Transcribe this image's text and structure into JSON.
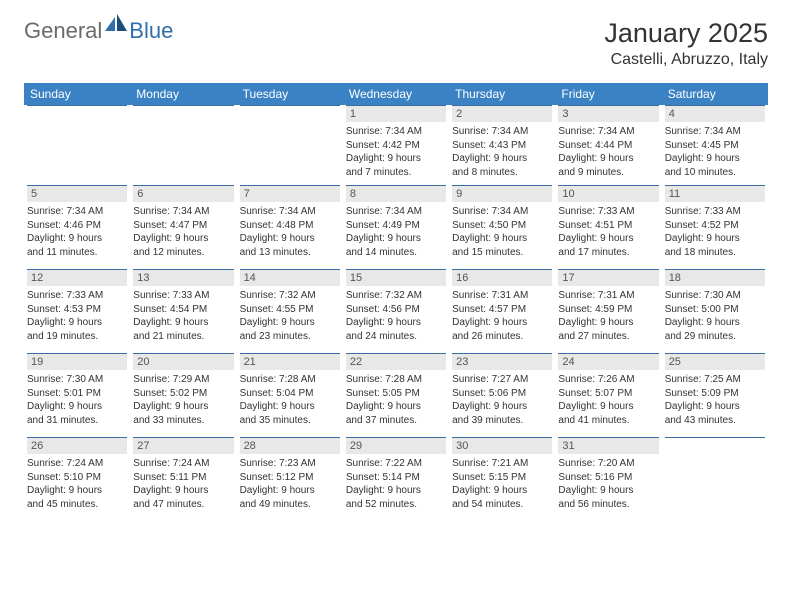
{
  "logo": {
    "text_general": "General",
    "text_blue": "Blue"
  },
  "header": {
    "month_title": "January 2025",
    "location": "Castelli, Abruzzo, Italy"
  },
  "colors": {
    "header_bg": "#3b82c4",
    "header_text": "#ffffff",
    "dayhead_bg": "#e8e8e8",
    "dayhead_border": "#3b6ea0",
    "body_text": "#333333",
    "logo_gray": "#6b6b6b",
    "logo_blue": "#2f6fab"
  },
  "day_names": [
    "Sunday",
    "Monday",
    "Tuesday",
    "Wednesday",
    "Thursday",
    "Friday",
    "Saturday"
  ],
  "weeks": [
    [
      null,
      null,
      null,
      {
        "d": "1",
        "sr": "7:34 AM",
        "ss": "4:42 PM",
        "dl1": "9 hours",
        "dl2": "and 7 minutes."
      },
      {
        "d": "2",
        "sr": "7:34 AM",
        "ss": "4:43 PM",
        "dl1": "9 hours",
        "dl2": "and 8 minutes."
      },
      {
        "d": "3",
        "sr": "7:34 AM",
        "ss": "4:44 PM",
        "dl1": "9 hours",
        "dl2": "and 9 minutes."
      },
      {
        "d": "4",
        "sr": "7:34 AM",
        "ss": "4:45 PM",
        "dl1": "9 hours",
        "dl2": "and 10 minutes."
      }
    ],
    [
      {
        "d": "5",
        "sr": "7:34 AM",
        "ss": "4:46 PM",
        "dl1": "9 hours",
        "dl2": "and 11 minutes."
      },
      {
        "d": "6",
        "sr": "7:34 AM",
        "ss": "4:47 PM",
        "dl1": "9 hours",
        "dl2": "and 12 minutes."
      },
      {
        "d": "7",
        "sr": "7:34 AM",
        "ss": "4:48 PM",
        "dl1": "9 hours",
        "dl2": "and 13 minutes."
      },
      {
        "d": "8",
        "sr": "7:34 AM",
        "ss": "4:49 PM",
        "dl1": "9 hours",
        "dl2": "and 14 minutes."
      },
      {
        "d": "9",
        "sr": "7:34 AM",
        "ss": "4:50 PM",
        "dl1": "9 hours",
        "dl2": "and 15 minutes."
      },
      {
        "d": "10",
        "sr": "7:33 AM",
        "ss": "4:51 PM",
        "dl1": "9 hours",
        "dl2": "and 17 minutes."
      },
      {
        "d": "11",
        "sr": "7:33 AM",
        "ss": "4:52 PM",
        "dl1": "9 hours",
        "dl2": "and 18 minutes."
      }
    ],
    [
      {
        "d": "12",
        "sr": "7:33 AM",
        "ss": "4:53 PM",
        "dl1": "9 hours",
        "dl2": "and 19 minutes."
      },
      {
        "d": "13",
        "sr": "7:33 AM",
        "ss": "4:54 PM",
        "dl1": "9 hours",
        "dl2": "and 21 minutes."
      },
      {
        "d": "14",
        "sr": "7:32 AM",
        "ss": "4:55 PM",
        "dl1": "9 hours",
        "dl2": "and 23 minutes."
      },
      {
        "d": "15",
        "sr": "7:32 AM",
        "ss": "4:56 PM",
        "dl1": "9 hours",
        "dl2": "and 24 minutes."
      },
      {
        "d": "16",
        "sr": "7:31 AM",
        "ss": "4:57 PM",
        "dl1": "9 hours",
        "dl2": "and 26 minutes."
      },
      {
        "d": "17",
        "sr": "7:31 AM",
        "ss": "4:59 PM",
        "dl1": "9 hours",
        "dl2": "and 27 minutes."
      },
      {
        "d": "18",
        "sr": "7:30 AM",
        "ss": "5:00 PM",
        "dl1": "9 hours",
        "dl2": "and 29 minutes."
      }
    ],
    [
      {
        "d": "19",
        "sr": "7:30 AM",
        "ss": "5:01 PM",
        "dl1": "9 hours",
        "dl2": "and 31 minutes."
      },
      {
        "d": "20",
        "sr": "7:29 AM",
        "ss": "5:02 PM",
        "dl1": "9 hours",
        "dl2": "and 33 minutes."
      },
      {
        "d": "21",
        "sr": "7:28 AM",
        "ss": "5:04 PM",
        "dl1": "9 hours",
        "dl2": "and 35 minutes."
      },
      {
        "d": "22",
        "sr": "7:28 AM",
        "ss": "5:05 PM",
        "dl1": "9 hours",
        "dl2": "and 37 minutes."
      },
      {
        "d": "23",
        "sr": "7:27 AM",
        "ss": "5:06 PM",
        "dl1": "9 hours",
        "dl2": "and 39 minutes."
      },
      {
        "d": "24",
        "sr": "7:26 AM",
        "ss": "5:07 PM",
        "dl1": "9 hours",
        "dl2": "and 41 minutes."
      },
      {
        "d": "25",
        "sr": "7:25 AM",
        "ss": "5:09 PM",
        "dl1": "9 hours",
        "dl2": "and 43 minutes."
      }
    ],
    [
      {
        "d": "26",
        "sr": "7:24 AM",
        "ss": "5:10 PM",
        "dl1": "9 hours",
        "dl2": "and 45 minutes."
      },
      {
        "d": "27",
        "sr": "7:24 AM",
        "ss": "5:11 PM",
        "dl1": "9 hours",
        "dl2": "and 47 minutes."
      },
      {
        "d": "28",
        "sr": "7:23 AM",
        "ss": "5:12 PM",
        "dl1": "9 hours",
        "dl2": "and 49 minutes."
      },
      {
        "d": "29",
        "sr": "7:22 AM",
        "ss": "5:14 PM",
        "dl1": "9 hours",
        "dl2": "and 52 minutes."
      },
      {
        "d": "30",
        "sr": "7:21 AM",
        "ss": "5:15 PM",
        "dl1": "9 hours",
        "dl2": "and 54 minutes."
      },
      {
        "d": "31",
        "sr": "7:20 AM",
        "ss": "5:16 PM",
        "dl1": "9 hours",
        "dl2": "and 56 minutes."
      },
      null
    ]
  ],
  "labels": {
    "sunrise": "Sunrise: ",
    "sunset": "Sunset: ",
    "daylight": "Daylight: "
  }
}
